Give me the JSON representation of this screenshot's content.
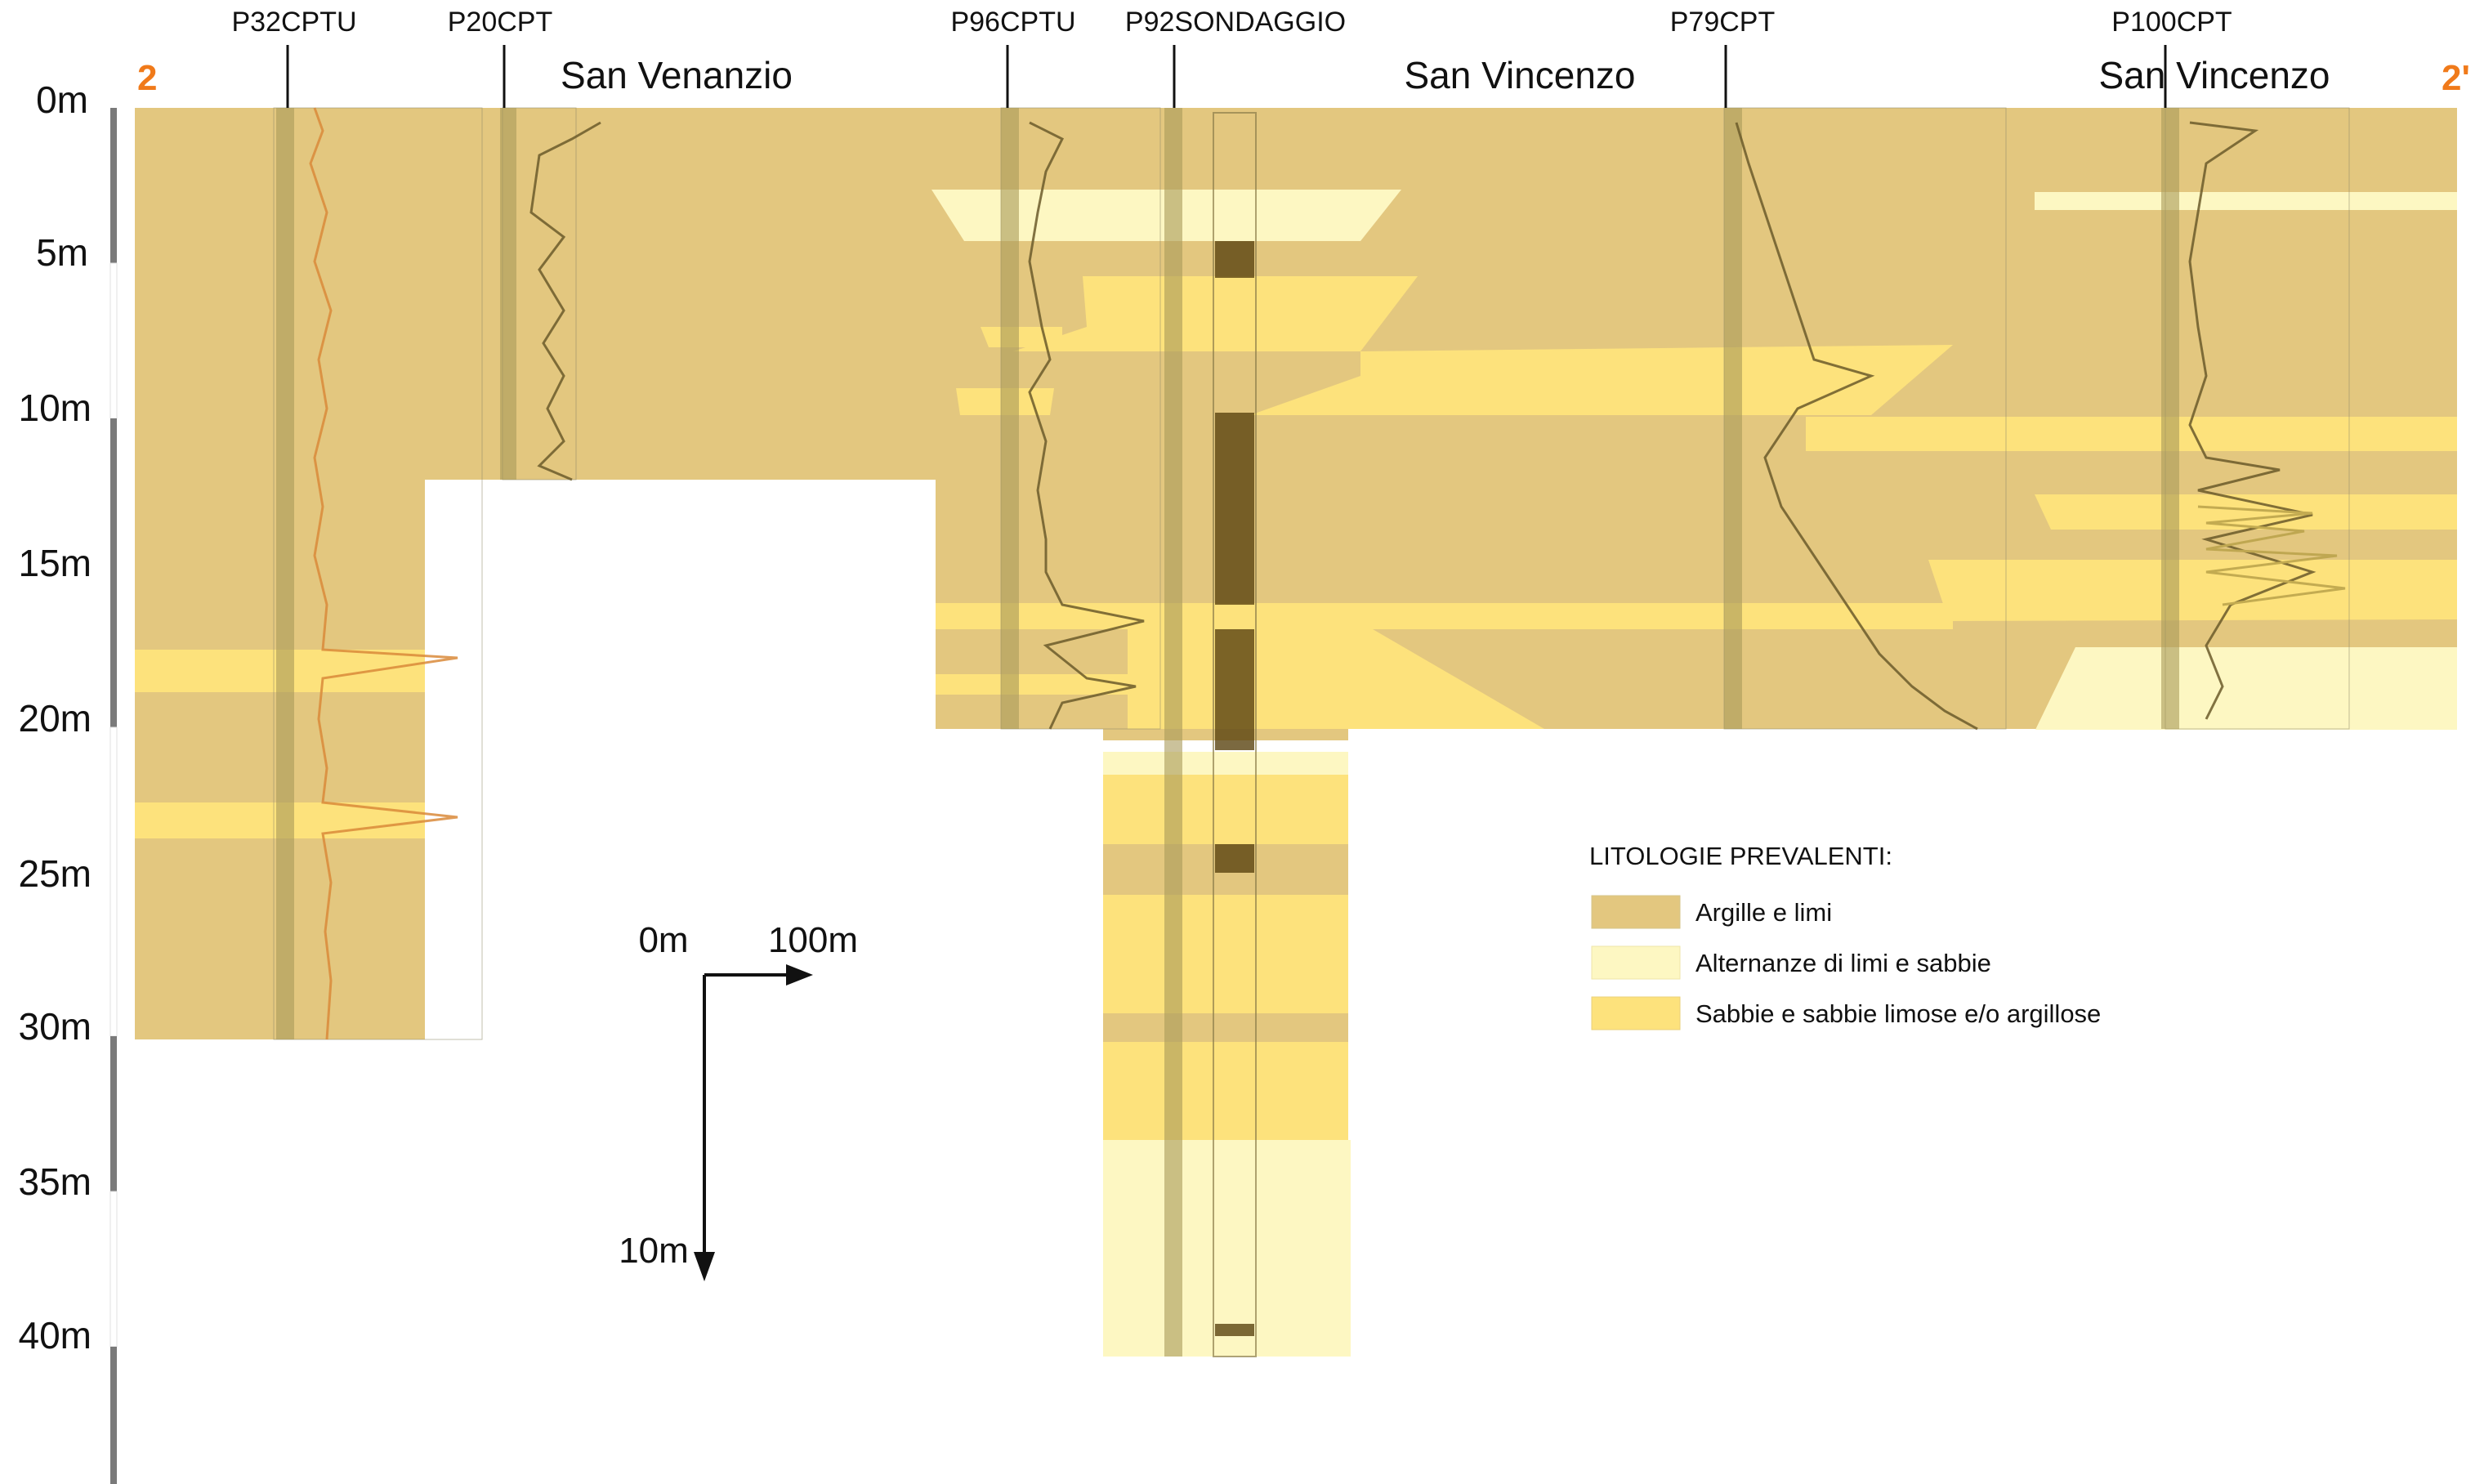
{
  "section": {
    "start_marker": "2",
    "end_marker": "2'",
    "marker_color": "#f07a1a",
    "localities": [
      "San Venanzio",
      "San Vincenzo",
      "San Vincenzo"
    ]
  },
  "boreholes": [
    {
      "id": "P32CPTU"
    },
    {
      "id": "P20CPT"
    },
    {
      "id": "P96CPTU"
    },
    {
      "id": "P92SONDAGGIO"
    },
    {
      "id": "P79CPT"
    },
    {
      "id": "P100CPT"
    }
  ],
  "depth_scale": {
    "labels": [
      "0m",
      "5m",
      "10m",
      "15m",
      "20m",
      "25m",
      "30m",
      "35m",
      "40m"
    ]
  },
  "scale_bar": {
    "origin": "0m",
    "horizontal": "100m",
    "vertical": "10m"
  },
  "legend": {
    "title": "LITOLOGIE PREVALENTI:",
    "items": [
      {
        "label": "Argille e limi",
        "color": "#e3c77f"
      },
      {
        "label": "Alternanze di limi e sabbie",
        "color": "#fdf7c2"
      },
      {
        "label": "Sabbie e sabbie limose e/o argillose",
        "color": "#fde27c"
      }
    ]
  },
  "colors": {
    "clay": "#e3c77f",
    "alternation": "#fdf7c2",
    "sand": "#fde27c",
    "log_band": "#a99a58",
    "cpt_trace": "#8a6a2a"
  }
}
